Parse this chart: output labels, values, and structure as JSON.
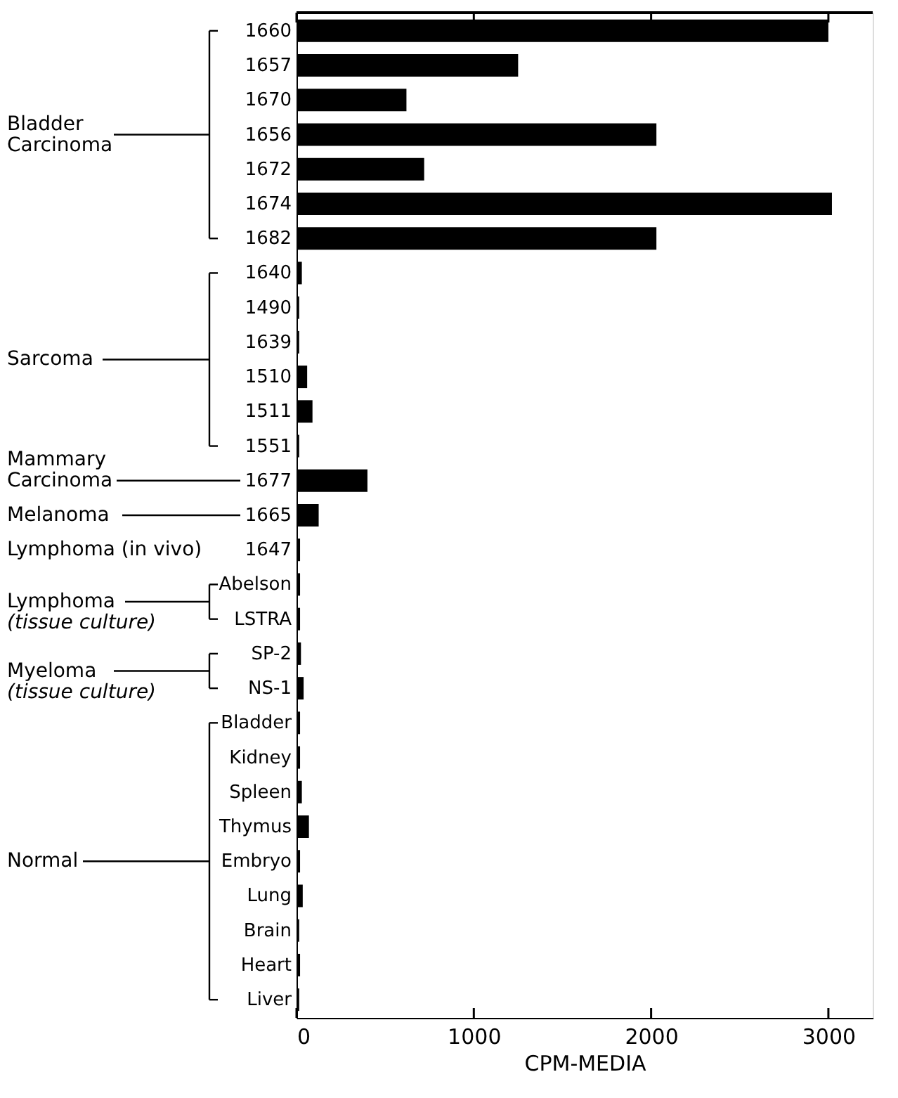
{
  "chart_data": {
    "type": "bar",
    "orientation": "horizontal",
    "xlabel": "CPM-MEDIA",
    "categories": [
      "1660",
      "1657",
      "1670",
      "1656",
      "1672",
      "1674",
      "1682",
      "1640",
      "1490",
      "1639",
      "1510",
      "1511",
      "1551",
      "1677",
      "1665",
      "1647",
      "Abelson",
      "LSTRA",
      "SP-2",
      "NS-1",
      "Bladder",
      "Kidney",
      "Spleen",
      "Thymus",
      "Embryo",
      "Lung",
      "Brain",
      "Heart",
      "Liver"
    ],
    "values": [
      3000,
      1250,
      620,
      2030,
      720,
      3020,
      2030,
      30,
      15,
      15,
      60,
      90,
      15,
      400,
      125,
      20,
      20,
      20,
      25,
      40,
      20,
      20,
      30,
      70,
      20,
      35,
      15,
      20,
      15
    ],
    "color": "#000000",
    "xlim": [
      0,
      3250
    ],
    "xticks": [
      0,
      1000,
      2000,
      3000
    ],
    "annotations": [
      "Bladder Carcinoma",
      "Sarcoma",
      "Mammary Carcinoma",
      "Melanoma",
      "Lymphoma (in vivo)",
      "Lymphoma (tissue culture)",
      "Myeloma (tissue culture)",
      "Normal"
    ]
  }
}
